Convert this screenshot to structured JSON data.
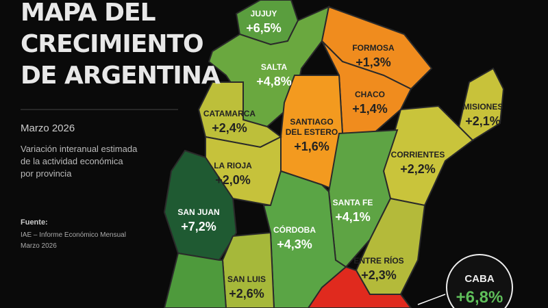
{
  "header": {
    "title_lines": [
      "MAPA DEL",
      "CRECIMIENTO",
      "DE ARGENTINA"
    ],
    "subtitle": "Marzo 2026",
    "description_lines": [
      "Variación interanual estimada",
      "de la actividad económica",
      "por provincia"
    ]
  },
  "source": {
    "label": "Fuente:",
    "lines": [
      "IAE – Informe Económico Mensual",
      "Marzo 2026"
    ]
  },
  "provinces": [
    {
      "name": "JUJUY",
      "value": "+6,5%"
    },
    {
      "name": "SALTA",
      "value": "+4,8%"
    },
    {
      "name": "FORMOSA",
      "value": "+1,3%"
    },
    {
      "name": "CHACO",
      "value": "+1,4%"
    },
    {
      "name": "MISIONES",
      "value": "+2,1%"
    },
    {
      "name": "CATAMARCA",
      "value": "+2,4%"
    },
    {
      "name": "SANTIAGO\nDEL ESTERO",
      "value": "+1,6%"
    },
    {
      "name": "CORRIENTES",
      "value": "+2,2%"
    },
    {
      "name": "LA RIOJA",
      "value": "+2,0%"
    },
    {
      "name": "SAN JUAN",
      "value": "+7,2%"
    },
    {
      "name": "SANTA FE",
      "value": "+4,1%"
    },
    {
      "name": "CÓRDOBA",
      "value": "+4,3%"
    },
    {
      "name": "ENTRE RÍOS",
      "value": "+2,3%"
    },
    {
      "name": "SAN LUIS",
      "value": "+2,6%"
    }
  ],
  "callout": {
    "name": "CABA",
    "value": "+6,8%"
  }
}
